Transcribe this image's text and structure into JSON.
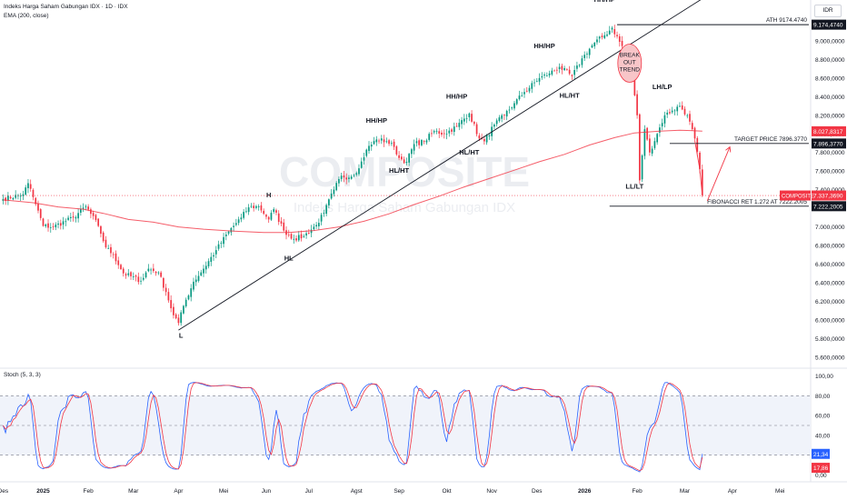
{
  "header": {
    "title": "Indeks Harga Saham Gabungan IDX · 1D · IDX",
    "indicator": "EMA (200, close)",
    "currency": "IDR",
    "watermark_symbol": "COMPOSITE",
    "watermark_name": "Indeks Harga Saham Gabungan IDX"
  },
  "chart_data": {
    "type": "candlestick",
    "price_axis": {
      "range": [
        5500,
        9420
      ],
      "ticks": [
        "5.600,0000",
        "5.800,0000",
        "6.000,0000",
        "6.200,0000",
        "6.400,0000",
        "6.600,0000",
        "6.800,0000",
        "7.000,0000",
        "7.200,0000",
        "7.400,0000",
        "7.600,0000",
        "7.800,0000",
        "8.000,0000",
        "8.200,0000",
        "8.400,0000",
        "8.600,0000",
        "8.800,0000",
        "9.000,0000"
      ],
      "tick_values": [
        5600,
        5800,
        6000,
        6200,
        6400,
        6600,
        6800,
        7000,
        7200,
        7400,
        7600,
        7800,
        8000,
        8200,
        8400,
        8600,
        8800,
        9000
      ],
      "badges": [
        {
          "label": "9.174,4740",
          "value": 9174.474,
          "color": "#131722"
        },
        {
          "label": "8.027,8317",
          "value": 8027.8317,
          "color": "#f23645"
        },
        {
          "label": "7.896,3770",
          "value": 7896.377,
          "color": "#131722"
        },
        {
          "label": "7.337,3690",
          "value": 7337.369,
          "color": "#f23645"
        },
        {
          "label": "7.222,2005",
          "value": 7222.2005,
          "color": "#131722"
        }
      ],
      "symbol_badge": "COMPOSITE"
    },
    "time_axis": {
      "labels": [
        "Des",
        "2025",
        "Feb",
        "Mar",
        "Apr",
        "Mei",
        "Jun",
        "Jul",
        "Agst",
        "Sep",
        "Okt",
        "Nov",
        "Des",
        "2026",
        "Feb",
        "Mar",
        "Apr",
        "Mei"
      ],
      "bar_index": [
        0,
        16,
        34,
        52,
        70,
        88,
        105,
        122,
        141,
        158,
        177,
        195,
        213,
        232,
        253,
        272,
        291,
        310
      ],
      "total_bars": 322,
      "last_bar": 279
    },
    "anchors": [
      [
        0,
        7300
      ],
      [
        8,
        7350
      ],
      [
        10,
        7470
      ],
      [
        12,
        7320
      ],
      [
        16,
        7010
      ],
      [
        20,
        7000
      ],
      [
        28,
        7100
      ],
      [
        33,
        7220
      ],
      [
        38,
        7010
      ],
      [
        41,
        6780
      ],
      [
        44,
        6700
      ],
      [
        48,
        6500
      ],
      [
        55,
        6420
      ],
      [
        58,
        6550
      ],
      [
        62,
        6510
      ],
      [
        65,
        6300
      ],
      [
        68,
        6050
      ],
      [
        70,
        5966
      ],
      [
        72,
        6150
      ],
      [
        76,
        6410
      ],
      [
        80,
        6550
      ],
      [
        85,
        6750
      ],
      [
        90,
        6950
      ],
      [
        95,
        7100
      ],
      [
        98,
        7210
      ],
      [
        102,
        7220
      ],
      [
        106,
        7080
      ],
      [
        108,
        7190
      ],
      [
        112,
        6960
      ],
      [
        116,
        6870
      ],
      [
        120,
        6900
      ],
      [
        125,
        7020
      ],
      [
        128,
        7150
      ],
      [
        132,
        7400
      ],
      [
        135,
        7550
      ],
      [
        138,
        7530
      ],
      [
        142,
        7630
      ],
      [
        145,
        7830
      ],
      [
        149,
        7940
      ],
      [
        153,
        7920
      ],
      [
        156,
        7860
      ],
      [
        158,
        7740
      ],
      [
        161,
        7700
      ],
      [
        164,
        7890
      ],
      [
        168,
        7920
      ],
      [
        172,
        8030
      ],
      [
        176,
        8000
      ],
      [
        181,
        8080
      ],
      [
        186,
        8220
      ],
      [
        190,
        7950
      ],
      [
        192,
        7920
      ],
      [
        196,
        8100
      ],
      [
        200,
        8200
      ],
      [
        204,
        8330
      ],
      [
        208,
        8450
      ],
      [
        214,
        8600
      ],
      [
        218,
        8650
      ],
      [
        222,
        8720
      ],
      [
        227,
        8620
      ],
      [
        232,
        8850
      ],
      [
        236,
        8980
      ],
      [
        240,
        9060
      ],
      [
        243,
        9140
      ],
      [
        246,
        8990
      ],
      [
        249,
        8850
      ],
      [
        251,
        8600
      ],
      [
        253,
        8200
      ],
      [
        254,
        7500
      ],
      [
        256,
        8050
      ],
      [
        258,
        7800
      ],
      [
        261,
        8000
      ],
      [
        264,
        8200
      ],
      [
        267,
        8250
      ],
      [
        270,
        8300
      ],
      [
        273,
        8200
      ],
      [
        276,
        7950
      ],
      [
        278,
        7620
      ],
      [
        279,
        7340
      ]
    ],
    "ema200_anchors": [
      [
        0,
        7290
      ],
      [
        12,
        7260
      ],
      [
        22,
        7215
      ],
      [
        32,
        7190
      ],
      [
        40,
        7145
      ],
      [
        50,
        7080
      ],
      [
        60,
        7050
      ],
      [
        70,
        7000
      ],
      [
        80,
        6975
      ],
      [
        92,
        6955
      ],
      [
        104,
        6940
      ],
      [
        114,
        6940
      ],
      [
        124,
        6960
      ],
      [
        134,
        7000
      ],
      [
        144,
        7060
      ],
      [
        154,
        7140
      ],
      [
        164,
        7240
      ],
      [
        174,
        7330
      ],
      [
        184,
        7430
      ],
      [
        194,
        7520
      ],
      [
        204,
        7610
      ],
      [
        214,
        7700
      ],
      [
        224,
        7780
      ],
      [
        234,
        7880
      ],
      [
        244,
        7960
      ],
      [
        252,
        8010
      ],
      [
        262,
        8030
      ],
      [
        270,
        8040
      ],
      [
        279,
        8030
      ]
    ],
    "trendline": {
      "from": [
        70,
        5890
      ],
      "to": [
        287,
        9590
      ]
    },
    "levels": [
      {
        "label": "ATH 9174.4740",
        "from": 245,
        "value": 9174.474
      },
      {
        "label": "TARGET PRICE 7896.3770",
        "from": 266,
        "value": 7896.377
      },
      {
        "label": "FIBONACCI RET 1.272 AT 7222.2005",
        "from": 242,
        "value": 7222.2005
      }
    ],
    "projection": [
      [
        276,
        7930
      ],
      [
        278,
        7620
      ],
      [
        279,
        7340
      ],
      [
        281,
        7280
      ],
      [
        290,
        7860
      ],
      [
        298,
        7860
      ]
    ],
    "pattern_labels": [
      {
        "text": "L",
        "bar": 71,
        "value": 5810
      },
      {
        "text": "H",
        "bar": 106,
        "value": 7320
      },
      {
        "text": "HL",
        "bar": 114,
        "value": 6640
      },
      {
        "text": "HH/HP",
        "bar": 149,
        "value": 8120
      },
      {
        "text": "HL/HT",
        "bar": 158,
        "value": 7580
      },
      {
        "text": "HH/HP",
        "bar": 181,
        "value": 8380
      },
      {
        "text": "HL/HT",
        "bar": 186,
        "value": 7780
      },
      {
        "text": "HH/HP",
        "bar": 216,
        "value": 8920
      },
      {
        "text": "HL/HT",
        "bar": 226,
        "value": 8390
      },
      {
        "text": "HH/HP",
        "bar": 240,
        "value": 9420
      },
      {
        "text": "LH/LP",
        "bar": 263,
        "value": 8480
      },
      {
        "text": "LL/LT",
        "bar": 252,
        "value": 7410
      }
    ],
    "callout": {
      "lines": [
        "BREAK",
        "OUT",
        "TREND"
      ],
      "bar": 250,
      "value": 8760
    },
    "stoch": {
      "label": "Stoch (5, 3, 3)",
      "range": [
        -5,
        105
      ],
      "band": [
        20,
        80
      ],
      "mid": 50,
      "ticks": [
        "100,00",
        "80,00",
        "60,00",
        "40,00",
        "20,00",
        "0,00"
      ],
      "tick_values": [
        100,
        80,
        60,
        40,
        20,
        0
      ],
      "k_value": "21,34",
      "d_value": "17,86",
      "k_current": 21.34,
      "d_current": 17.86,
      "k_color": "#2962ff",
      "d_color": "#f23645"
    }
  },
  "colors": {
    "up": "#089981",
    "down": "#f23645",
    "ema": "#f23645",
    "trend": "#131722"
  }
}
